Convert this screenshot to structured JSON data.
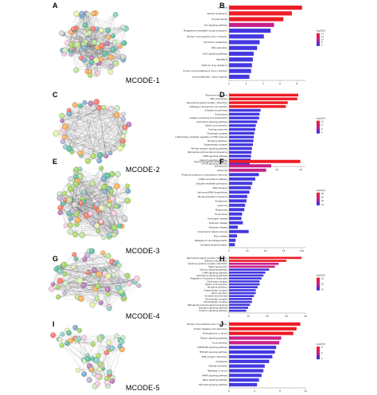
{
  "figure": {
    "panels": [
      {
        "network_letter": "A",
        "chart_letter": "B",
        "module_label": "MCODE-1"
      },
      {
        "network_letter": "C",
        "chart_letter": "D",
        "module_label": "MCODE-2"
      },
      {
        "network_letter": "E",
        "chart_letter": "F",
        "module_label": "MCODE-3"
      },
      {
        "network_letter": "G",
        "chart_letter": "H",
        "module_label": "MCODE-4"
      },
      {
        "network_letter": "I",
        "chart_letter": "J",
        "module_label": "MCODE-5"
      }
    ]
  },
  "colors": {
    "bar_high": "#ee1c25",
    "bar_mid": "#c8208a",
    "bar_low": "#4338e0",
    "gradient_top": "#ee1c25",
    "gradient_mid": "#c8208a",
    "gradient_bottom": "#2b2bd9"
  },
  "chart_data": [
    {
      "type": "bar",
      "orientation": "horizontal",
      "categories": [
        "Cell cycle",
        "Cellular senescence",
        "Oocyte meiosis",
        "p53 signaling pathway",
        "Progesterone-mediated oocyte maturation",
        "Human T-cell leukemia virus 1 infection",
        "Pyrimidine metabolism",
        "DNA replication",
        "FoxO signaling pathway",
        "Hepatitis B",
        "Platinum drug resistance",
        "Human immunodeficiency virus 1 infection",
        "Drug metabolism - other enzymes"
      ],
      "values": [
        8.6,
        7.4,
        6.4,
        5.3,
        4.9,
        4.1,
        3.6,
        3.3,
        2.9,
        2.8,
        2.7,
        2.6,
        2.4
      ],
      "xlim": [
        0,
        9
      ],
      "xticks": [
        "0",
        "2",
        "4",
        "6",
        "8"
      ],
      "legend_title": "-log10(P)",
      "legend_labels": [
        "14",
        "12",
        "10",
        "8",
        "6"
      ]
    },
    {
      "type": "bar",
      "orientation": "horizontal",
      "categories": [
        "Ribosome biogenesis",
        "RNA polymerase",
        "Neuroactive ligand-receptor interaction",
        "Pathogenic Escherichia coli infection",
        "Aldosterone synthesis",
        "Endocytosis",
        "Antigen processing and presentation",
        "Chemokine signaling pathway",
        "Gastric acid secretion",
        "Cushing syndrome",
        "Cholinergic synapse",
        "Inflammatory mediator regulation of TRP channels",
        "Morphine addiction",
        "Dopaminergic synapse",
        "Toll-like receptor signaling pathway",
        "Retrograde endocannabinoid signaling",
        "cAMP signaling pathway",
        "Calcium signaling pathway",
        "mTOR signaling pathway"
      ],
      "values": [
        14.5,
        14.3,
        12.3,
        11.9,
        6.6,
        6.4,
        6.3,
        5.9,
        5.6,
        5.5,
        5.3,
        5.2,
        5.1,
        5.0,
        4.8,
        4.7,
        4.6,
        4.5,
        4.3
      ],
      "xlim": [
        0,
        16
      ],
      "xticks": [
        "0",
        "5",
        "10",
        "15"
      ],
      "legend_title": "-log10(P)",
      "legend_labels": [
        "10",
        "8",
        "6",
        "4"
      ]
    },
    {
      "type": "bar",
      "orientation": "horizontal",
      "categories": [
        "Glycosaminoglycan biosynthesis",
        "Spliceosome",
        "Ribosome",
        "Protein processing in endoplasmic reticulum",
        "mRNA surveillance pathway",
        "Ubiquitin mediated proteolysis",
        "RNA transport",
        "Aminoacyl-tRNA biosynthesis",
        "Nucleocytoplasmic transport",
        "Proteasome",
        "Lysosome",
        "Phagosome",
        "Endocytosis",
        "Huntington disease",
        "Parkinson disease",
        "Alzheimer disease",
        "Amyotrophic lateral sclerosis",
        "Prion disease",
        "Pathways of neurodegeneration",
        "Oxidative phosphorylation"
      ],
      "values": [
        98,
        58,
        51,
        41,
        36,
        32,
        30,
        28,
        25,
        24,
        22,
        21,
        18,
        17,
        19,
        12,
        27,
        11,
        9,
        8
      ],
      "xlim": [
        0,
        105
      ],
      "xticks": [
        "0",
        "25",
        "50",
        "75",
        "100"
      ],
      "legend_title": "-log10(P)",
      "legend_labels": [
        "80",
        "60",
        "40",
        "20"
      ]
    },
    {
      "type": "bar",
      "orientation": "horizontal",
      "categories": [
        "Neuroactive ligand-receptor interaction",
        "Olfactory transduction",
        "Cytokine-cytokine receptor interaction",
        "Taste transduction",
        "Calcium signaling pathway",
        "cAMP signaling pathway",
        "Chemokine signaling pathway",
        "Regulation of lipolysis in adipocytes",
        "Cholinergic synapse",
        "Gastric acid secretion",
        "Morphine addiction",
        "Dopaminergic synapse",
        "Renin secretion",
        "Circadian entrainment",
        "Serotonergic synapse",
        "Glutamatergic synapse",
        "Retrograde endocannabinoid signaling",
        "Estrogen signaling pathway",
        "Oxytocin signaling pathway"
      ],
      "values": [
        38,
        30,
        26,
        24,
        21,
        19,
        18,
        17,
        16,
        16,
        15,
        14,
        14,
        13,
        12,
        12,
        11,
        10,
        9
      ],
      "xlim": [
        0,
        40
      ],
      "xticks": [
        "0",
        "10",
        "20",
        "30",
        "40"
      ],
      "legend_title": "-log10(P)",
      "legend_labels": [
        "30",
        "20",
        "10"
      ]
    },
    {
      "type": "bar",
      "orientation": "horizontal",
      "categories": [
        "Human T-cell leukemia virus 1 infection",
        "Protein digestion and absorption",
        "Proteoglycans in cancer",
        "Relaxin signaling pathway",
        "Focal adhesion",
        "AGE-RAGE signaling pathway",
        "PI3K-Akt signaling pathway",
        "ECM-receptor interaction",
        "Amoebiasis",
        "Platelet activation",
        "Pathways in cancer",
        "MAPK signaling pathway",
        "Rap1 signaling pathway",
        "TGF-beta signaling pathway"
      ],
      "values": [
        11.2,
        10.6,
        10.1,
        8.2,
        7.9,
        7.4,
        7.2,
        6.8,
        6.3,
        5.6,
        5.4,
        5.1,
        4.7,
        4.4
      ],
      "xlim": [
        0,
        12
      ],
      "xticks": [
        "0",
        "4",
        "8",
        "12"
      ],
      "legend_title": "-log10(P)",
      "legend_labels": [
        "8",
        "6",
        "4"
      ]
    }
  ]
}
